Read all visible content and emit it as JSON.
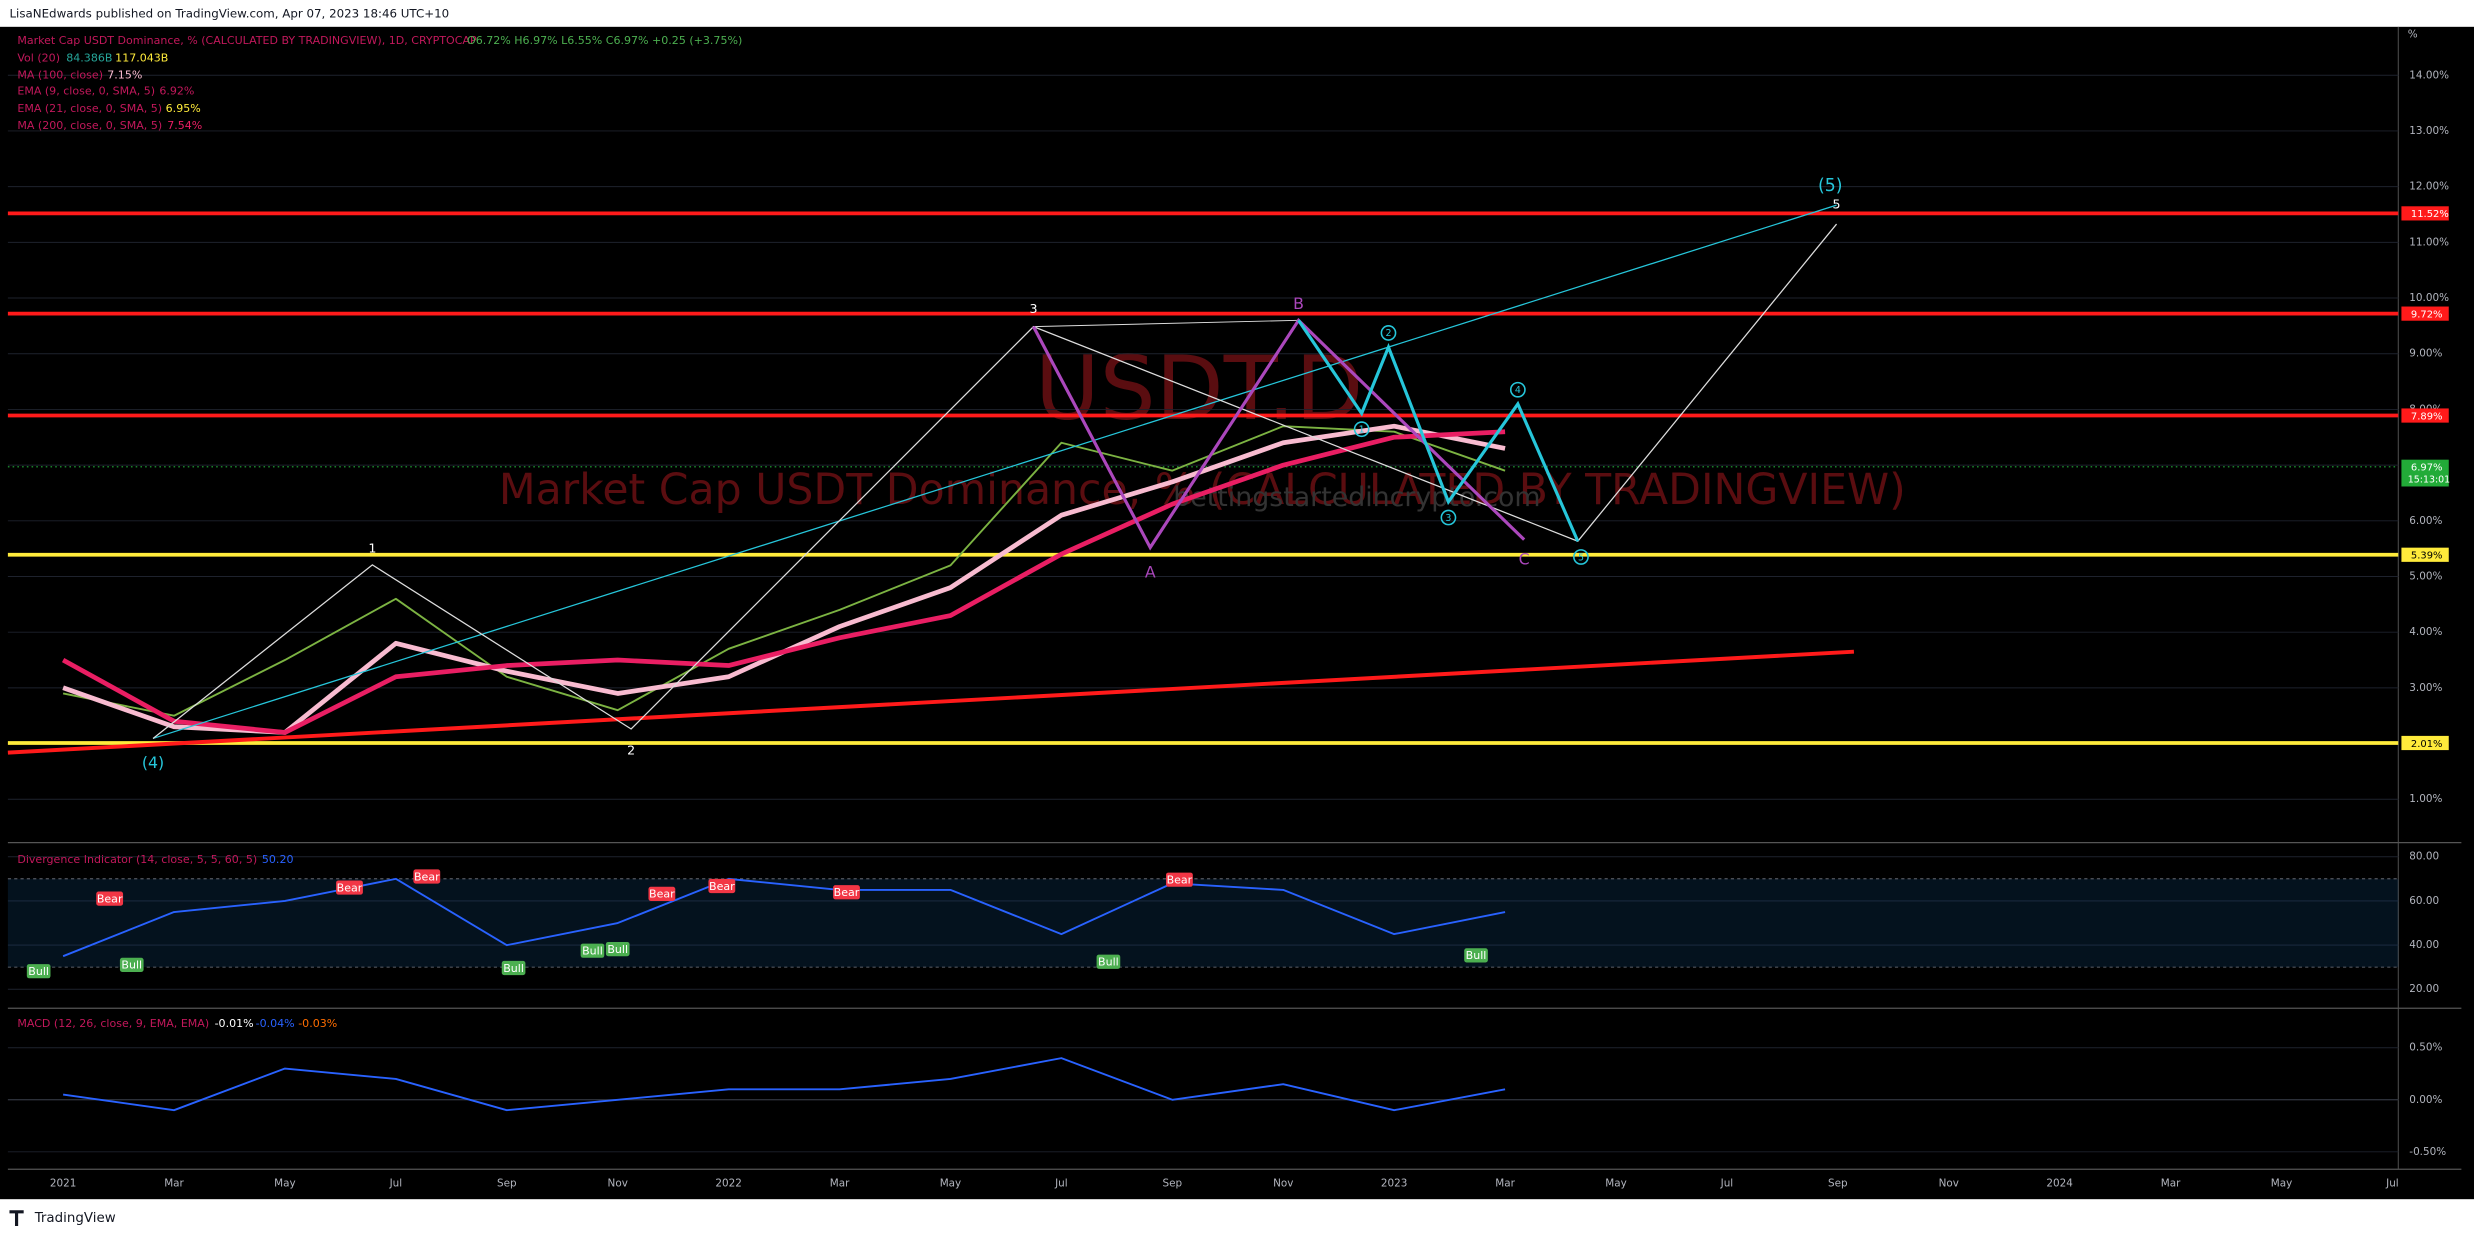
{
  "header": "LisaNEdwards published on TradingView.com, Apr 07, 2023 18:46 UTC+10",
  "footer": "TradingView",
  "watermark": {
    "symbol": "USDT.D",
    "name": "Market Cap USDT Dominance, % (CALCULATED BY TRADINGVIEW)",
    "site": "bettingstartedincrypto.com"
  },
  "legend": {
    "main": "Market Cap USDT Dominance, % (CALCULATED BY TRADINGVIEW), 1D, CRYPTOCAP",
    "ohlc": "O6.72% H6.97% L6.55% C6.97% +0.25 (+3.75%)",
    "indicators": [
      {
        "name": "Vol (20)",
        "value": "84.386B",
        "value2": "117.043B"
      },
      {
        "name": "MA (100, close)",
        "value": "7.15%"
      },
      {
        "name": "EMA (9, close, 0, SMA, 5)",
        "value": "6.92%"
      },
      {
        "name": "EMA (21, close, 0, SMA, 5)",
        "value": "6.95%"
      },
      {
        "name": "MA (200, close, 0, SMA, 5)",
        "value": "7.54%"
      }
    ]
  },
  "waves": [
    "(5)",
    "5",
    "3",
    "1",
    "2",
    "(4)",
    "B",
    "A",
    "C",
    "1",
    "2",
    "3",
    "4",
    "5"
  ],
  "signals": [
    "Bull",
    "Bear",
    "Bull",
    "Bear",
    "Bear",
    "Bull",
    "Bull",
    "Bull",
    "Bear",
    "Bear",
    "Bear",
    "Bull",
    "Bear",
    "Bull"
  ],
  "chart_data": [
    {
      "type": "line",
      "categories": [
        "2021",
        "Mar",
        "May",
        "Jul",
        "Sep",
        "Nov",
        "2022",
        "Mar",
        "May",
        "Jul",
        "Sep",
        "Nov",
        "2023",
        "Mar",
        "May",
        "Jul",
        "Sep",
        "Nov",
        "2024",
        "Mar",
        "May",
        "Jul"
      ],
      "unit_label": "%",
      "series": [
        {
          "name": "Market Cap USDT Dominance",
          "color": "#7cb342",
          "width": 1.2,
          "values": [
            2.9,
            2.5,
            3.5,
            4.6,
            3.2,
            2.6,
            3.7,
            4.4,
            5.2,
            7.4,
            6.9,
            7.7,
            7.6,
            6.9,
            null,
            null,
            null,
            null,
            null,
            null,
            null,
            null
          ]
        },
        {
          "name": "MA (100, close)",
          "color": "#f8bbd0",
          "width": 3,
          "values": [
            3.0,
            2.3,
            2.2,
            3.8,
            3.3,
            2.9,
            3.2,
            4.1,
            4.8,
            6.1,
            6.7,
            7.4,
            7.7,
            7.3,
            null,
            null,
            null,
            null,
            null,
            null,
            null,
            null
          ]
        },
        {
          "name": "MA (200, close, 0, SMA, 5)",
          "color": "#e91e63",
          "width": 3,
          "values": [
            3.5,
            2.4,
            2.2,
            3.2,
            3.4,
            3.5,
            3.4,
            3.9,
            4.3,
            5.4,
            6.3,
            7.0,
            7.5,
            7.6,
            null,
            null,
            null,
            null,
            null,
            null,
            null,
            null
          ]
        }
      ],
      "levels": [
        {
          "value": 11.52,
          "label": "11.52%",
          "color": "#ff1a1a"
        },
        {
          "value": 9.72,
          "label": "9.72%",
          "color": "#ff1a1a"
        },
        {
          "value": 7.89,
          "label": "7.89%",
          "color": "#ff1a1a"
        },
        {
          "value": 5.39,
          "label": "5.39%",
          "color": "#ffeb3b"
        },
        {
          "value": 2.01,
          "label": "2.01%",
          "color": "#ffeb3b"
        }
      ],
      "last_price": {
        "value": 6.97,
        "label": "6.97%",
        "countdown": "15:13:01",
        "color": "#22ab38"
      },
      "ylim": [
        0.25,
        14.87
      ],
      "yticks": [
        {
          "value": 14,
          "label": "14.00%"
        },
        {
          "value": 13,
          "label": "13.00%"
        },
        {
          "value": 12,
          "label": "12.00%"
        },
        {
          "value": 11,
          "label": "11.00%"
        },
        {
          "value": 10,
          "label": "10.00%"
        },
        {
          "value": 9,
          "label": "9.00%"
        },
        {
          "value": 8,
          "label": "8.00%"
        },
        {
          "value": 7,
          "label": "7.00%"
        },
        {
          "value": 6,
          "label": "6.00%"
        },
        {
          "value": 5,
          "label": "5.00%"
        },
        {
          "value": 4,
          "label": "4.00%"
        },
        {
          "value": 3,
          "label": "3.00%"
        },
        {
          "value": 2,
          "label": "2.00%"
        },
        {
          "value": 1,
          "label": "1.00%"
        }
      ]
    },
    {
      "type": "line",
      "title": "Divergence Indicator (14, close, 5, 5, 60, 5)",
      "current": "50.20",
      "series": [
        {
          "name": "Divergence Indicator",
          "color": "#2962ff",
          "width": 1.2,
          "values": [
            35,
            55,
            60,
            70,
            40,
            50,
            70,
            65,
            65,
            45,
            68,
            65,
            45,
            55,
            null,
            null,
            null,
            null,
            null,
            null,
            null,
            null
          ]
        }
      ],
      "band": [
        30,
        70
      ],
      "ylim": [
        12.1,
        85.7
      ],
      "yticks": [
        {
          "value": 80,
          "label": "80.00"
        },
        {
          "value": 60,
          "label": "60.00"
        },
        {
          "value": 40,
          "label": "40.00"
        },
        {
          "value": 20,
          "label": "20.00"
        }
      ]
    },
    {
      "type": "line",
      "title": "MACD (12, 26, close, 9, EMA, EMA)",
      "current": [
        "-0.01%",
        "-0.04%",
        "-0.03%"
      ],
      "series": [
        {
          "name": "MACD",
          "color": "#2962ff",
          "width": 1.2,
          "values": [
            0.05,
            -0.1,
            0.3,
            0.2,
            -0.1,
            0.0,
            0.1,
            0.1,
            0.2,
            0.4,
            0.0,
            0.15,
            -0.1,
            0.1,
            null,
            null,
            null,
            null,
            null,
            null,
            null,
            null
          ]
        }
      ],
      "ylim": [
        -0.652,
        0.864
      ],
      "yticks": [
        {
          "value": 0.5,
          "label": "0.50%"
        },
        {
          "value": 0,
          "label": "0.00%"
        },
        {
          "value": -0.5,
          "label": "-0.50%"
        }
      ]
    }
  ]
}
